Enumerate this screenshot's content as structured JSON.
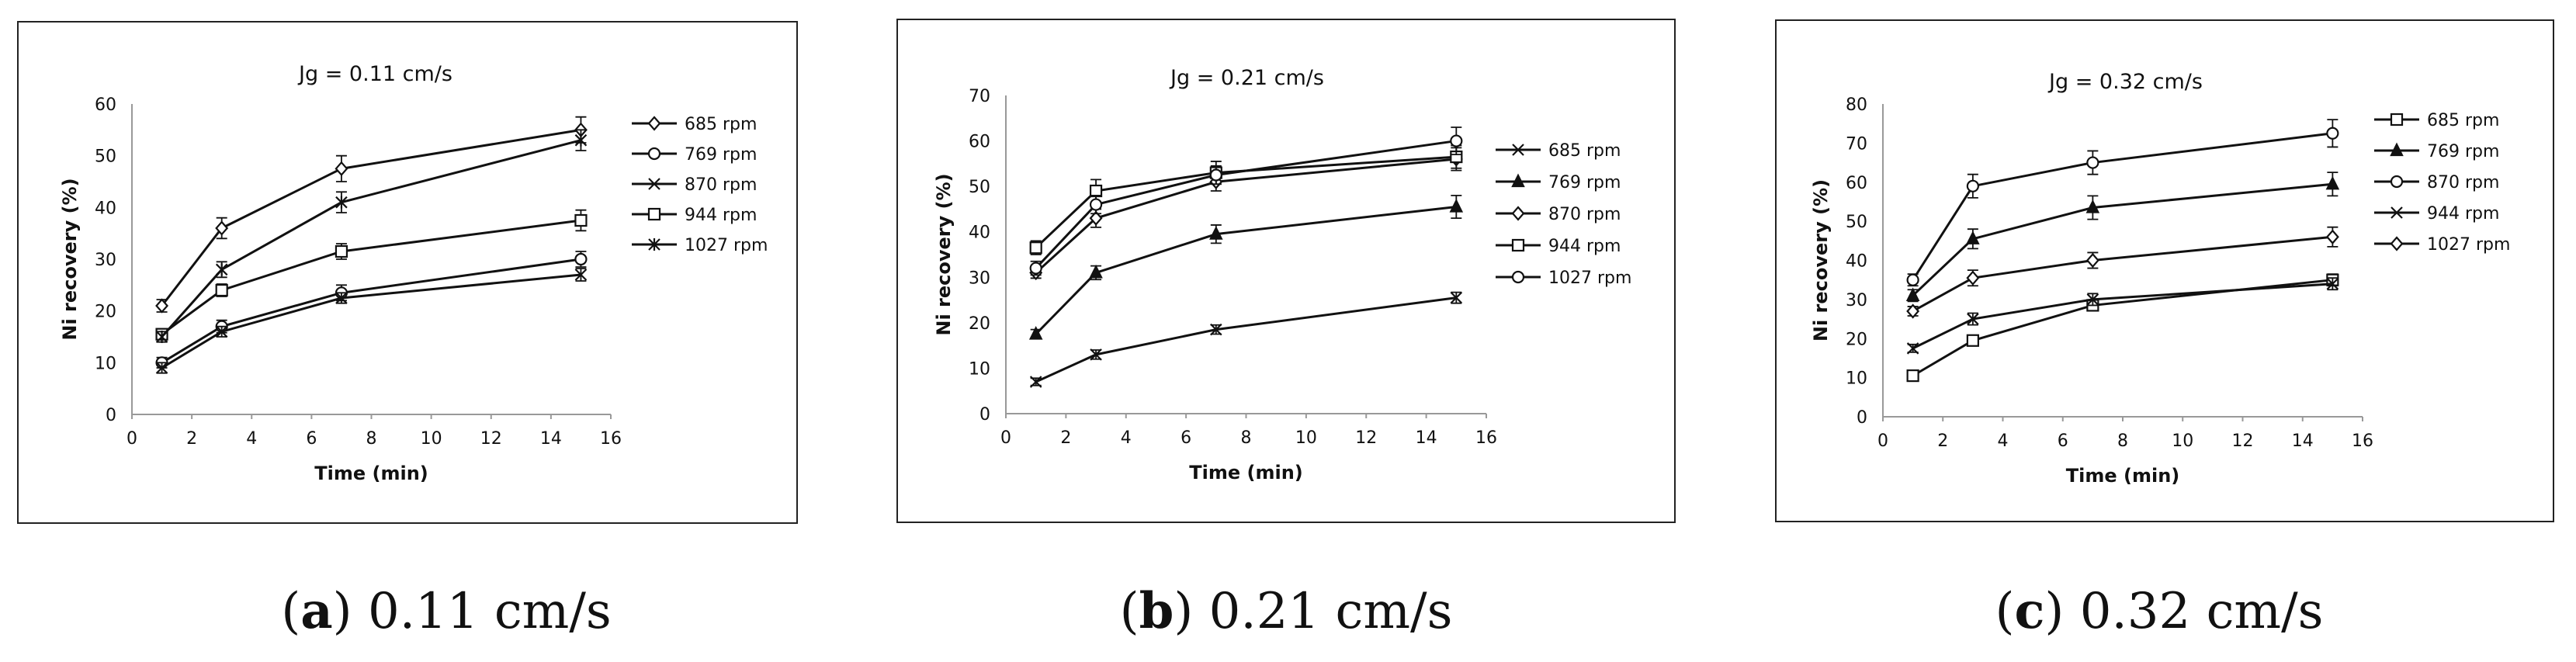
{
  "captions": [
    {
      "label": "a",
      "text": " 0.11 cm/s"
    },
    {
      "label": "b",
      "text": " 0.21 cm/s"
    },
    {
      "label": "c",
      "text": " 0.32 cm/s"
    }
  ],
  "chart_data": [
    {
      "type": "line",
      "title": "Jg = 0.11 cm/s",
      "xlabel": "Time (min)",
      "ylabel": "Ni recovery (%)",
      "xlim": [
        0,
        16
      ],
      "xticks": [
        0,
        2,
        4,
        6,
        8,
        10,
        12,
        14,
        16
      ],
      "ylim": [
        0,
        60
      ],
      "yticks": [
        0,
        10,
        20,
        30,
        40,
        50,
        60
      ],
      "x": [
        1,
        3,
        7,
        15
      ],
      "series": [
        {
          "name": "685 rpm",
          "marker": "diamond",
          "values": [
            21,
            36,
            47.5,
            55
          ],
          "errors": [
            1.2,
            2,
            2.5,
            2.5
          ]
        },
        {
          "name": "769 rpm",
          "marker": "circle",
          "values": [
            10,
            17,
            23.5,
            30
          ],
          "errors": [
            1,
            1.2,
            1.5,
            1.5
          ]
        },
        {
          "name": "870 rpm",
          "marker": "x",
          "values": [
            9,
            16,
            22.5,
            27
          ],
          "errors": [
            1,
            1,
            1,
            1.2
          ]
        },
        {
          "name": "944 rpm",
          "marker": "square",
          "values": [
            15.5,
            24,
            31.5,
            37.5
          ],
          "errors": [
            1,
            1.2,
            1.5,
            2
          ]
        },
        {
          "name": "1027 rpm",
          "marker": "star",
          "values": [
            15,
            28,
            41,
            53
          ],
          "errors": [
            1,
            1.5,
            2,
            2
          ]
        }
      ]
    },
    {
      "type": "line",
      "title": "Jg = 0.21 cm/s",
      "xlabel": "Time (min)",
      "ylabel": "Ni recovery (%)",
      "xlim": [
        0,
        16
      ],
      "xticks": [
        0,
        2,
        4,
        6,
        8,
        10,
        12,
        14,
        16
      ],
      "ylim": [
        0,
        70
      ],
      "yticks": [
        0,
        10,
        20,
        30,
        40,
        50,
        60,
        70
      ],
      "x": [
        1,
        3,
        7,
        15
      ],
      "series": [
        {
          "name": "685 rpm",
          "marker": "x",
          "values": [
            7,
            13,
            18.5,
            25.5
          ],
          "errors": [
            0.8,
            1,
            1,
            1.2
          ]
        },
        {
          "name": "769 rpm",
          "marker": "triangle",
          "values": [
            17.5,
            31,
            39.5,
            45.5
          ],
          "errors": [
            1,
            1.5,
            2,
            2.5
          ]
        },
        {
          "name": "870 rpm",
          "marker": "diamond",
          "values": [
            31,
            43,
            51,
            56
          ],
          "errors": [
            1.2,
            2,
            2,
            2.5
          ]
        },
        {
          "name": "944 rpm",
          "marker": "square",
          "values": [
            36.5,
            49,
            53,
            56.5
          ],
          "errors": [
            1.5,
            2.5,
            2.5,
            2.5
          ]
        },
        {
          "name": "1027 rpm",
          "marker": "circle",
          "values": [
            32,
            46,
            52.5,
            60
          ],
          "errors": [
            1.5,
            2,
            2,
            3
          ]
        }
      ]
    },
    {
      "type": "line",
      "title": "Jg = 0.32 cm/s",
      "xlabel": "Time (min)",
      "ylabel": "Ni recovery  (%)",
      "xlim": [
        0,
        16
      ],
      "xticks": [
        0,
        2,
        4,
        6,
        8,
        10,
        12,
        14,
        16
      ],
      "ylim": [
        0,
        80
      ],
      "yticks": [
        0,
        10,
        20,
        30,
        40,
        50,
        60,
        70,
        80
      ],
      "x": [
        1,
        3,
        7,
        15
      ],
      "series": [
        {
          "name": "685 rpm",
          "marker": "square",
          "values": [
            10.5,
            19.5,
            28.5,
            35
          ],
          "errors": [
            0.8,
            1,
            1.2,
            1.5
          ]
        },
        {
          "name": "769 rpm",
          "marker": "triangle",
          "values": [
            31,
            45.5,
            53.5,
            59.5
          ],
          "errors": [
            1.5,
            2.5,
            3,
            3
          ]
        },
        {
          "name": "870 rpm",
          "marker": "circle",
          "values": [
            35,
            59,
            65,
            72.5
          ],
          "errors": [
            1.5,
            3,
            3,
            3.5
          ]
        },
        {
          "name": "944 rpm",
          "marker": "x",
          "values": [
            17.5,
            25,
            30,
            34
          ],
          "errors": [
            1,
            1.5,
            1.5,
            1.5
          ]
        },
        {
          "name": "1027 rpm",
          "marker": "diamond",
          "values": [
            27,
            35.5,
            40,
            46
          ],
          "errors": [
            1.2,
            2,
            2,
            2.5
          ]
        }
      ]
    }
  ]
}
